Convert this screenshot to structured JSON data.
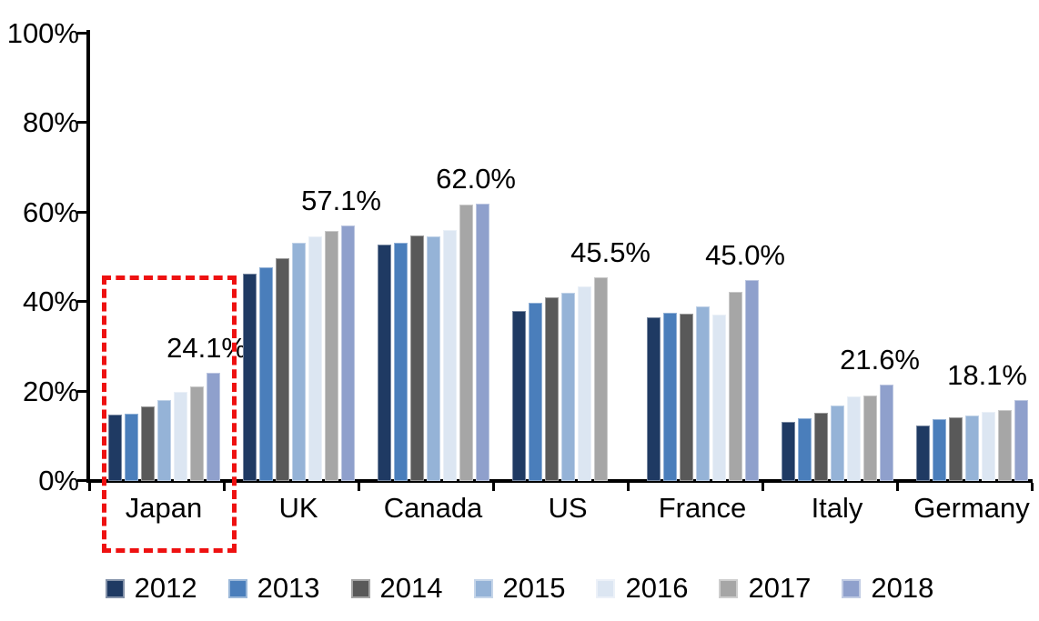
{
  "chart_data": {
    "type": "bar",
    "title": "",
    "categories": [
      "Japan",
      "UK",
      "Canada",
      "US",
      "France",
      "Italy",
      "Germany"
    ],
    "series": [
      {
        "name": "2012",
        "color": "#1f3a63",
        "values": [
          14.8,
          46.3,
          52.9,
          38.1,
          36.5,
          13.3,
          12.3
        ]
      },
      {
        "name": "2013",
        "color": "#4a7ebb",
        "values": [
          15.0,
          47.7,
          53.3,
          39.9,
          37.6,
          14.0,
          13.8
        ]
      },
      {
        "name": "2014",
        "color": "#595959",
        "values": [
          16.6,
          49.9,
          54.8,
          41.0,
          37.4,
          15.3,
          14.2
        ]
      },
      {
        "name": "2015",
        "color": "#95b3d7",
        "values": [
          18.0,
          53.3,
          54.6,
          42.0,
          39.1,
          16.8,
          14.7
        ]
      },
      {
        "name": "2016",
        "color": "#dce6f2",
        "values": [
          20.0,
          54.6,
          56.1,
          43.5,
          37.2,
          18.9,
          15.4
        ]
      },
      {
        "name": "2017",
        "color": "#a6a6a6",
        "values": [
          21.1,
          55.8,
          61.7,
          45.5,
          42.3,
          19.1,
          15.9
        ]
      },
      {
        "name": "2018",
        "color": "#8fa0cc",
        "values": [
          24.1,
          57.1,
          62.0,
          null,
          45.0,
          21.6,
          18.1
        ]
      }
    ],
    "data_labels": [
      {
        "category": "Japan",
        "year": "2018",
        "text": "24.1%"
      },
      {
        "category": "UK",
        "year": "2018",
        "text": "57.1%"
      },
      {
        "category": "Canada",
        "year": "2018",
        "text": "62.0%"
      },
      {
        "category": "US",
        "year": "2017",
        "text": "45.5%"
      },
      {
        "category": "France",
        "year": "2018",
        "text": "45.0%"
      },
      {
        "category": "Italy",
        "year": "2018",
        "text": "21.6%"
      },
      {
        "category": "Germany",
        "year": "2018",
        "text": "18.1%"
      }
    ],
    "y_axis": {
      "ylim": [
        0,
        100
      ],
      "ticks": [
        0,
        20,
        40,
        60,
        80,
        100
      ],
      "tick_labels": [
        "0%",
        "20%",
        "40%",
        "60%",
        "80%",
        "100%"
      ]
    },
    "xlabel": "",
    "ylabel": "",
    "grid": false,
    "legend_position": "bottom",
    "highlight": {
      "target": "Japan",
      "shape": "dashed-rectangle",
      "color": "#ee1111"
    }
  }
}
